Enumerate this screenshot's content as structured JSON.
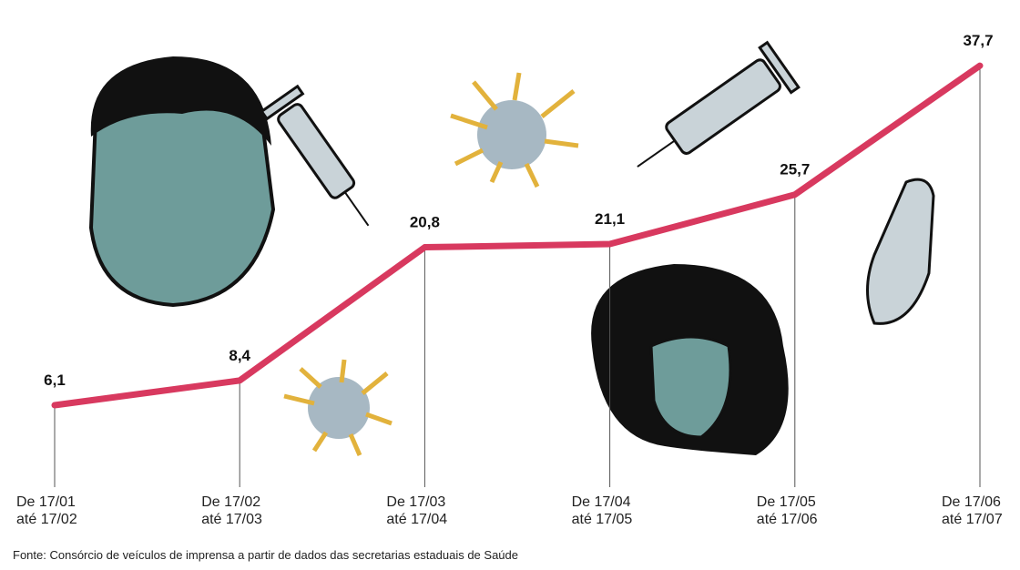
{
  "chart_data": {
    "type": "line",
    "categories": [
      "De 17/01 até 17/02",
      "De 17/02 até 17/03",
      "De 17/03 até 17/04",
      "De 17/04 até 17/05",
      "De 17/05 até 17/06",
      "De 17/06 até 17/07"
    ],
    "values": [
      6.1,
      8.4,
      20.8,
      21.1,
      25.7,
      37.7
    ],
    "value_labels": [
      "6,1",
      "8,4",
      "20,8",
      "21,1",
      "25,7",
      "37,7"
    ],
    "color": "#d8395f",
    "source": "Fonte: Consórcio de veículos de imprensa a partir de dados das secretarias estaduais de Saúde"
  }
}
